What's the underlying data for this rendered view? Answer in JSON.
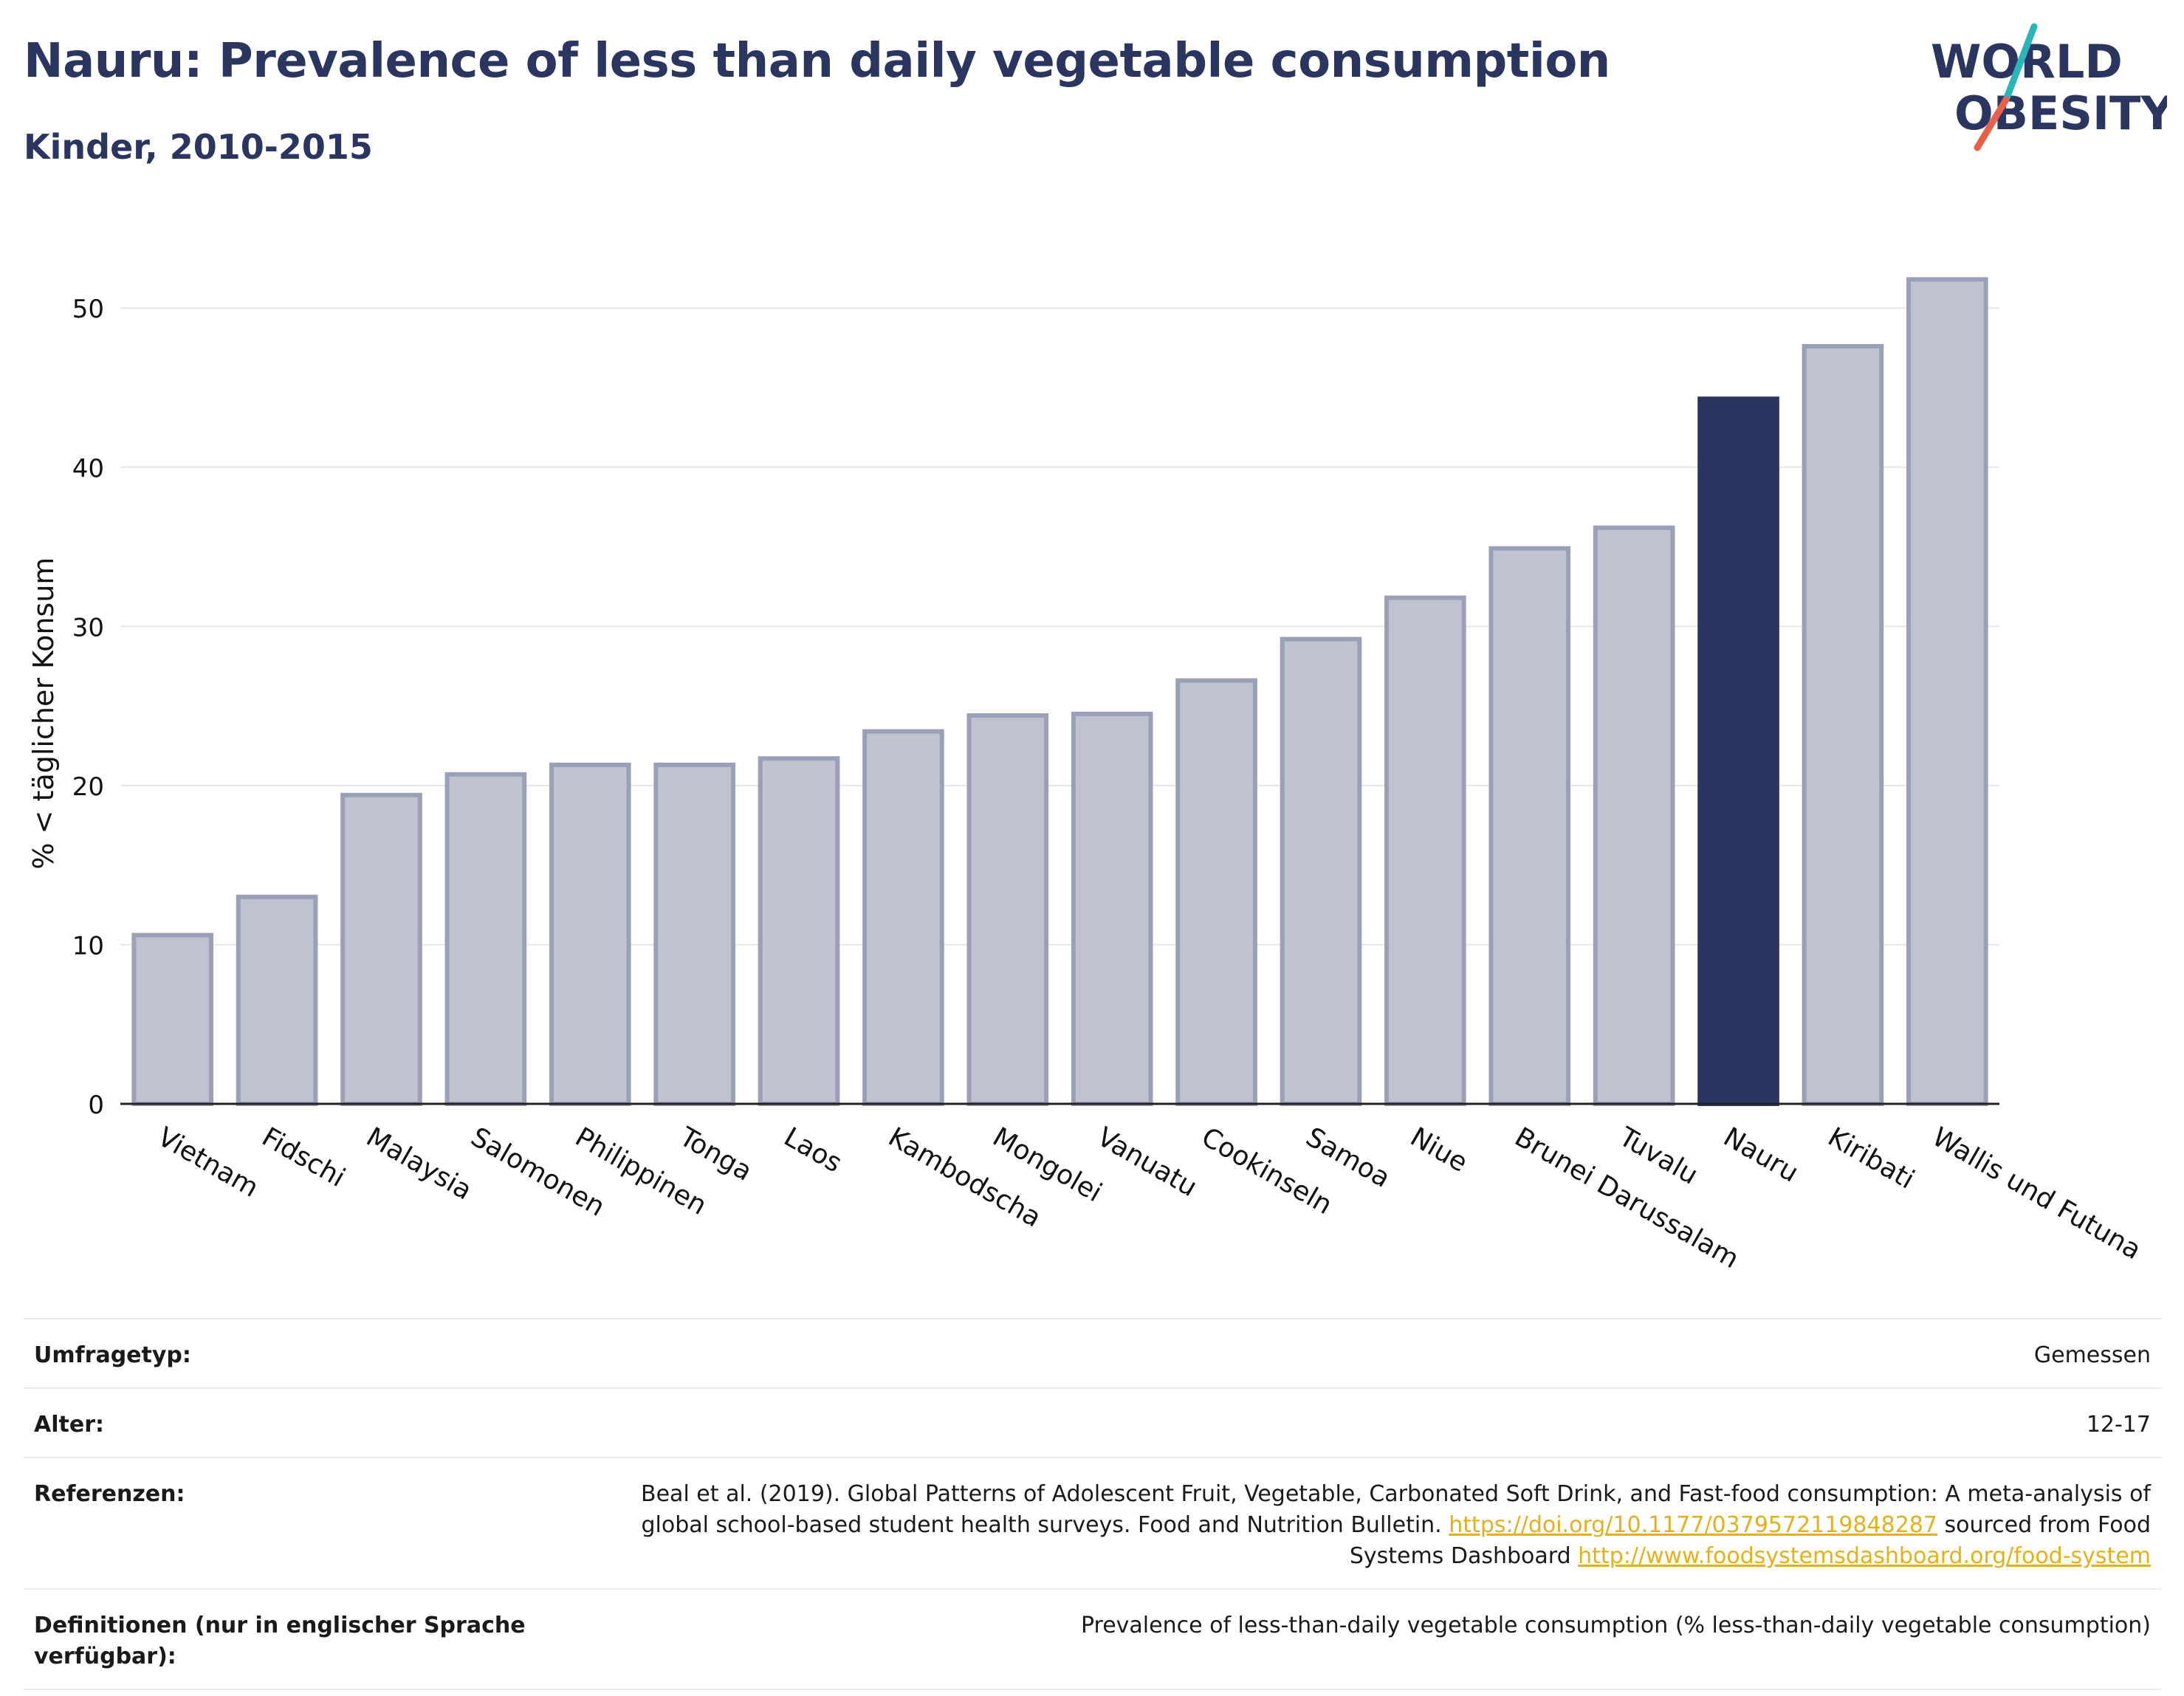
{
  "header": {
    "title": "Nauru: Prevalence of less than daily vegetable consumption",
    "subtitle": "Kinder, 2010-2015"
  },
  "logo": {
    "line1": "WORLD",
    "line2": "OBESITY",
    "colors": {
      "text": "#2a3560",
      "slash_top": "#2bb5b8",
      "slash_bottom": "#e8604c"
    }
  },
  "chart_data": {
    "type": "bar",
    "ylabel": "% < täglicher Konsum",
    "xlabel": "",
    "ylim": [
      0,
      54
    ],
    "yticks": [
      0,
      10,
      20,
      30,
      40,
      50
    ],
    "grid": true,
    "highlight": "Nauru",
    "colors": {
      "bar": "#bfc3d0",
      "bar_border": "#9aa0b8",
      "highlight": "#2a3560"
    },
    "categories": [
      "Vietnam",
      "Fidschi",
      "Malaysia",
      "Salomonen",
      "Philippinen",
      "Tonga",
      "Laos",
      "Kambodscha",
      "Mongolei",
      "Vanuatu",
      "Cookinseln",
      "Samoa",
      "Niue",
      "Brunei Darussalam",
      "Tuvalu",
      "Nauru",
      "Kiribati",
      "Wallis und Futuna"
    ],
    "values": [
      10.6,
      13.0,
      19.4,
      20.7,
      21.3,
      21.3,
      21.7,
      23.4,
      24.4,
      24.5,
      26.6,
      29.2,
      31.8,
      34.9,
      36.2,
      44.3,
      47.6,
      51.8
    ]
  },
  "meta": {
    "rows": [
      {
        "label": "Umfragetyp:",
        "value": "Gemessen"
      },
      {
        "label": "Alter:",
        "value": "12-17"
      },
      {
        "label": "Referenzen:",
        "value_pre": "Beal et al. (2019). Global Patterns of Adolescent Fruit, Vegetable, Carbonated Soft Drink, and Fast-food consumption: A meta-analysis of global school-based student health surveys. Food and Nutrition Bulletin.",
        "link1": "https://doi.org/10.1177/0379572119848287",
        "value_mid": "sourced from Food Systems Dashboard",
        "link2": "http://www.foodsystemsdashboard.org/food-system"
      },
      {
        "label": "Definitionen (nur in englischer Sprache verfügbar):",
        "value": "Prevalence of less-than-daily vegetable consumption (% less-than-daily vegetable consumption)"
      }
    ]
  }
}
